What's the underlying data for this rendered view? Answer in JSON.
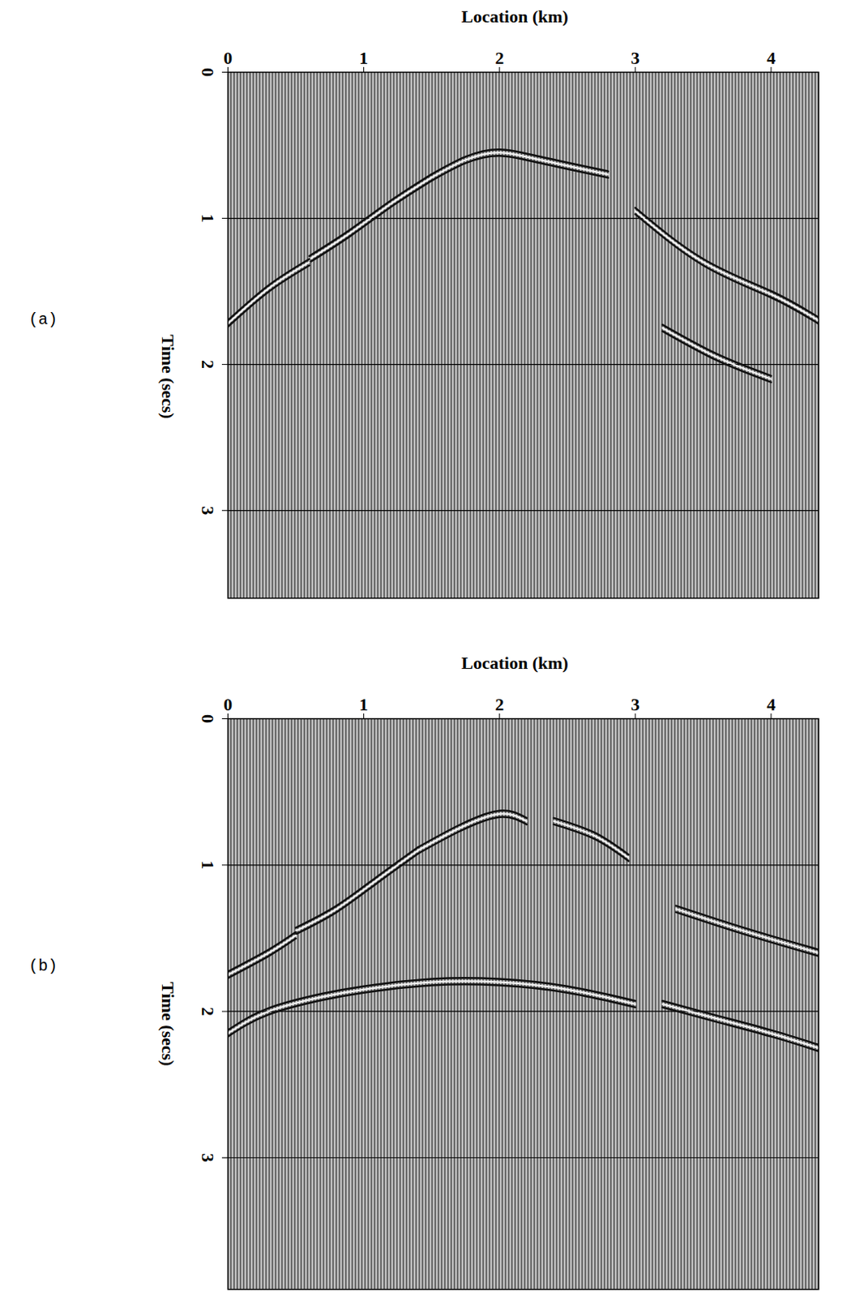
{
  "chart_data": [
    {
      "type": "seismic",
      "panel_label": "(a)",
      "x_label": "Location (km)",
      "y_label": "Time (secs)",
      "xlim": [
        0,
        4.35
      ],
      "xticks": [
        0,
        1,
        2,
        3,
        4
      ],
      "ylim": [
        0,
        3.6
      ],
      "yticks": [
        0,
        1,
        2,
        3
      ],
      "grid": true,
      "events": [
        {
          "points": [
            [
              1.5,
              0.72
            ],
            [
              1.75,
              0.6
            ],
            [
              2.0,
              0.55
            ],
            [
              2.3,
              0.6
            ],
            [
              2.8,
              0.7
            ]
          ]
        },
        {
          "points": [
            [
              0.6,
              1.28
            ],
            [
              0.9,
              1.1
            ],
            [
              1.2,
              0.9
            ],
            [
              1.5,
              0.72
            ]
          ]
        },
        {
          "points": [
            [
              0.0,
              1.72
            ],
            [
              0.3,
              1.48
            ],
            [
              0.6,
              1.3
            ]
          ]
        },
        {
          "points": [
            [
              3.0,
              0.95
            ],
            [
              3.5,
              1.3
            ],
            [
              4.0,
              1.52
            ],
            [
              4.35,
              1.7
            ]
          ]
        },
        {
          "points": [
            [
              3.2,
              1.75
            ],
            [
              3.6,
              1.95
            ],
            [
              4.0,
              2.1
            ]
          ]
        }
      ]
    },
    {
      "type": "seismic",
      "panel_label": "(b)",
      "x_label": "Location (km)",
      "y_label": "Time (secs)",
      "xlim": [
        0,
        4.35
      ],
      "xticks": [
        0,
        1,
        2,
        3,
        4
      ],
      "ylim": [
        0,
        3.9
      ],
      "yticks": [
        0,
        1,
        2,
        3
      ],
      "grid": true,
      "events": [
        {
          "points": [
            [
              1.4,
              0.9
            ],
            [
              1.7,
              0.75
            ],
            [
              2.0,
              0.65
            ],
            [
              2.2,
              0.7
            ]
          ]
        },
        {
          "points": [
            [
              2.4,
              0.7
            ],
            [
              2.7,
              0.8
            ],
            [
              2.95,
              0.95
            ]
          ]
        },
        {
          "points": [
            [
              0.5,
              1.45
            ],
            [
              0.8,
              1.3
            ],
            [
              1.1,
              1.1
            ],
            [
              1.4,
              0.9
            ]
          ]
        },
        {
          "points": [
            [
              0.0,
              1.75
            ],
            [
              0.3,
              1.6
            ],
            [
              0.5,
              1.48
            ]
          ]
        },
        {
          "points": [
            [
              0.0,
              2.15
            ],
            [
              0.3,
              2.0
            ],
            [
              0.7,
              1.9
            ],
            [
              1.0,
              1.85
            ],
            [
              1.5,
              1.8
            ],
            [
              2.0,
              1.8
            ],
            [
              2.5,
              1.85
            ],
            [
              3.0,
              1.95
            ]
          ]
        },
        {
          "points": [
            [
              3.2,
              1.95
            ],
            [
              3.6,
              2.05
            ],
            [
              4.0,
              2.15
            ],
            [
              4.35,
              2.25
            ]
          ]
        },
        {
          "points": [
            [
              3.3,
              1.3
            ],
            [
              3.8,
              1.45
            ],
            [
              4.35,
              1.6
            ]
          ]
        }
      ]
    }
  ]
}
